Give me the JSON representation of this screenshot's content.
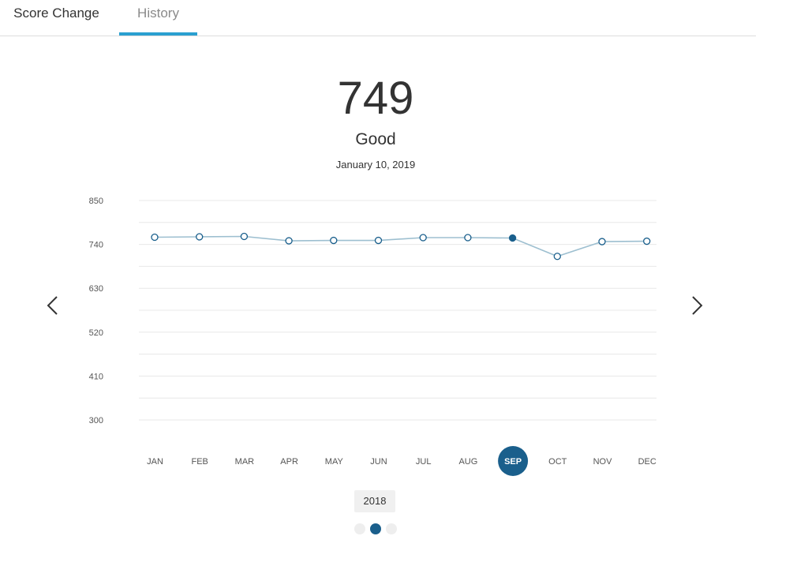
{
  "tabs": [
    {
      "label": "Score Change",
      "active": false
    },
    {
      "label": "History",
      "active": true
    }
  ],
  "score": {
    "value": "749",
    "rating": "Good",
    "date": "January 10, 2019"
  },
  "colors": {
    "accent_tab": "#2a9fd0",
    "line": "#9dbfd0",
    "point_stroke": "#1a5f8c",
    "selected": "#1a5f8c",
    "grid": "#e8e8e8"
  },
  "chart_data": {
    "type": "line",
    "categories": [
      "JAN",
      "FEB",
      "MAR",
      "APR",
      "MAY",
      "JUN",
      "JUL",
      "AUG",
      "SEP",
      "OCT",
      "NOV",
      "DEC"
    ],
    "series": [
      {
        "values": [
          758,
          759,
          760,
          749,
          750,
          750,
          757,
          757,
          756,
          710,
          747,
          748
        ]
      }
    ],
    "yticks": [
      "850",
      "740",
      "630",
      "520",
      "410",
      "300"
    ],
    "ylim": [
      300,
      850
    ],
    "grid": true,
    "selected_category": "SEP"
  },
  "nav": {
    "prev_icon": "chevron-left-icon",
    "next_icon": "chevron-right-icon"
  },
  "year": "2018",
  "pagination": {
    "count": 3,
    "active": 1
  }
}
